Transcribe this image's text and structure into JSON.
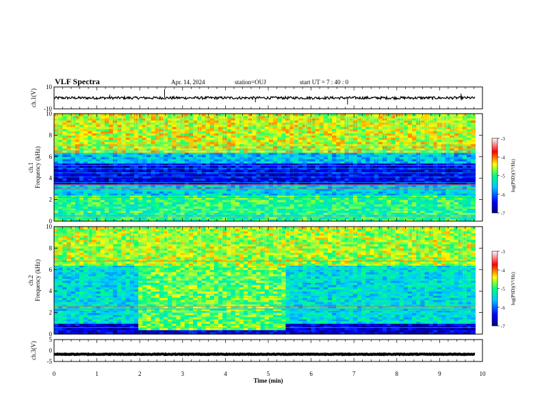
{
  "header": {
    "title": "VLF Spectra",
    "date": "Apr. 14, 2024",
    "station": "station=OUJ",
    "start": "start UT = 7 : 40 : 0"
  },
  "chart_data": [
    {
      "type": "line",
      "name": "ch1-waveform",
      "ylabel": "ch.1(V)",
      "ylim": [
        -10,
        10
      ],
      "yticks": [
        "10",
        "-10"
      ],
      "x_range_min": [
        0,
        9.83
      ],
      "baseline": 0,
      "noise_amplitude": 1.2,
      "spikes": [
        {
          "t": 1.3,
          "v": 3
        },
        {
          "t": 2.58,
          "v": 8
        },
        {
          "t": 4.7,
          "v": -4
        },
        {
          "t": 6.85,
          "v": -6
        },
        {
          "t": 9.5,
          "v": 4
        }
      ]
    },
    {
      "type": "heatmap",
      "name": "ch1-spectrogram",
      "ylabel": "ch.1 Frequency (kHz)",
      "ylim": [
        0,
        10
      ],
      "yticks": [
        "0",
        "2",
        "4",
        "6",
        "8",
        "10"
      ],
      "colorbar": {
        "label": "log(PSD)(V²/Hz)",
        "range": [
          -7,
          -3
        ],
        "ticks": [
          "-3",
          "-4",
          "-5",
          "-6",
          "-7"
        ]
      },
      "bands": [
        {
          "f": [
            6.5,
            10
          ],
          "level": -4.5
        },
        {
          "f": [
            5.5,
            6.5
          ],
          "level": -5.6
        },
        {
          "f": [
            3.5,
            5.5
          ],
          "level": -6.5
        },
        {
          "f": [
            2.5,
            3.5
          ],
          "level": -5.5
        },
        {
          "f": [
            0,
            2.5
          ],
          "level": -5.0
        }
      ],
      "harmonic_lines_khz": [
        0.4,
        0.6,
        1.0,
        1.3,
        2.0,
        2.4,
        2.8,
        3.0,
        3.3,
        3.6,
        4.1,
        4.5,
        4.9,
        5.2,
        5.5,
        5.9,
        6.3,
        6.6,
        7.0
      ],
      "strong_lines_khz": [
        0.5,
        2.2,
        3.0,
        3.4
      ]
    },
    {
      "type": "heatmap",
      "name": "ch2-spectrogram",
      "ylabel": "ch.2 Frequency (kHz)",
      "ylim": [
        0,
        10
      ],
      "yticks": [
        "0",
        "2",
        "4",
        "6",
        "8",
        "10"
      ],
      "colorbar": {
        "label": "log(PSD)(V²/Hz)",
        "range": [
          -7,
          -3
        ],
        "ticks": [
          "-3",
          "-4",
          "-5",
          "-6",
          "-7"
        ]
      },
      "bands": [
        {
          "f": [
            6.5,
            10
          ],
          "level": -4.6
        },
        {
          "f": [
            1.0,
            6.5
          ],
          "level": -5.4
        },
        {
          "f": [
            0,
            1.0
          ],
          "level": -6.6
        }
      ],
      "enhanced_region": {
        "t": [
          2.0,
          5.4
        ],
        "f": [
          0.5,
          6.5
        ],
        "level": -4.8
      },
      "harmonic_lines_khz": [
        0.6,
        1.2,
        1.6,
        2.0,
        2.4,
        2.8,
        3.0,
        3.4,
        3.7,
        4.1,
        4.6,
        5.0,
        5.4,
        5.8,
        6.2,
        6.8
      ],
      "strong_lines_khz": [
        2.3,
        2.6,
        6.8
      ]
    },
    {
      "type": "line",
      "name": "ch3-waveform",
      "ylabel": "ch.3(V)",
      "ylim": [
        -5,
        5
      ],
      "yticks": [
        "5",
        "0",
        "-5"
      ],
      "x_range_min": [
        0,
        9.83
      ],
      "baseline": -1.7,
      "noise_amplitude": 0.15
    }
  ],
  "x_axis": {
    "label": "Time (min)",
    "range": [
      0,
      10
    ],
    "ticks": [
      "0",
      "1",
      "2",
      "3",
      "4",
      "5",
      "6",
      "7",
      "8",
      "9",
      "10"
    ]
  }
}
